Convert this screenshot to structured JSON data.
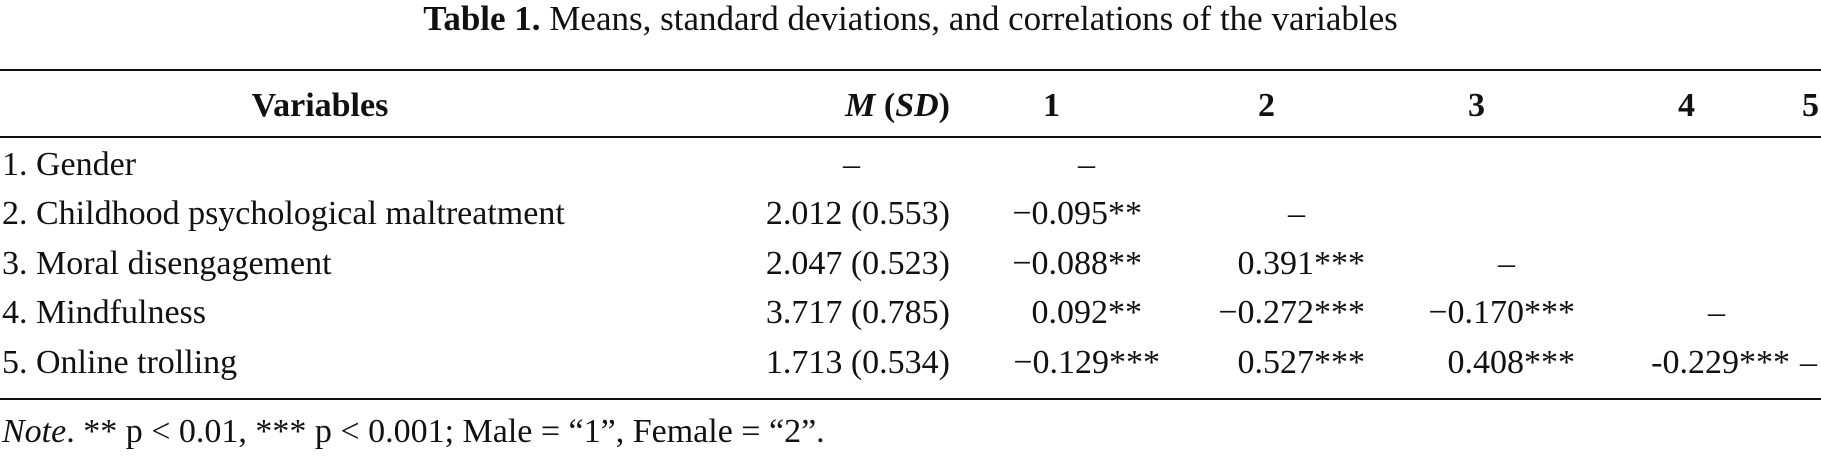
{
  "title": {
    "label": "Table 1.",
    "text": "Means, standard deviations, and correlations of the variables"
  },
  "header": {
    "variables": "Variables",
    "m": "M",
    "sd_open": " (",
    "sd": "SD",
    "sd_close": ")",
    "col1": "1",
    "col2": "2",
    "col3": "3",
    "col4": "4",
    "col5": "5"
  },
  "rows": [
    {
      "label": "1. Gender",
      "msd": "–",
      "c1": "–",
      "c2": "",
      "c3": "",
      "c4": "",
      "c5": ""
    },
    {
      "label": "2. Childhood psychological maltreatment",
      "msd": "2.012 (0.553)",
      "c1": "−0.095**",
      "c2": "–",
      "c3": "",
      "c4": "",
      "c5": ""
    },
    {
      "label": "3. Moral disengagement",
      "msd": "2.047 (0.523)",
      "c1": "−0.088**",
      "c2": "0.391***",
      "c3": "–",
      "c4": "",
      "c5": ""
    },
    {
      "label": "4. Mindfulness",
      "msd": "3.717 (0.785)",
      "c1": "0.092**",
      "c2": "−0.272***",
      "c3": "−0.170***",
      "c4": "–",
      "c5": ""
    },
    {
      "label": "5. Online trolling",
      "msd": "1.713 (0.534)",
      "c1": "−0.129***",
      "c2": "0.527***",
      "c3": "0.408***",
      "c4": "-0.229***",
      "c5": "–"
    }
  ],
  "note": {
    "label": "Note",
    "text": ". ** p < 0.01, *** p < 0.001; Male = “1”, Female = “2”."
  }
}
